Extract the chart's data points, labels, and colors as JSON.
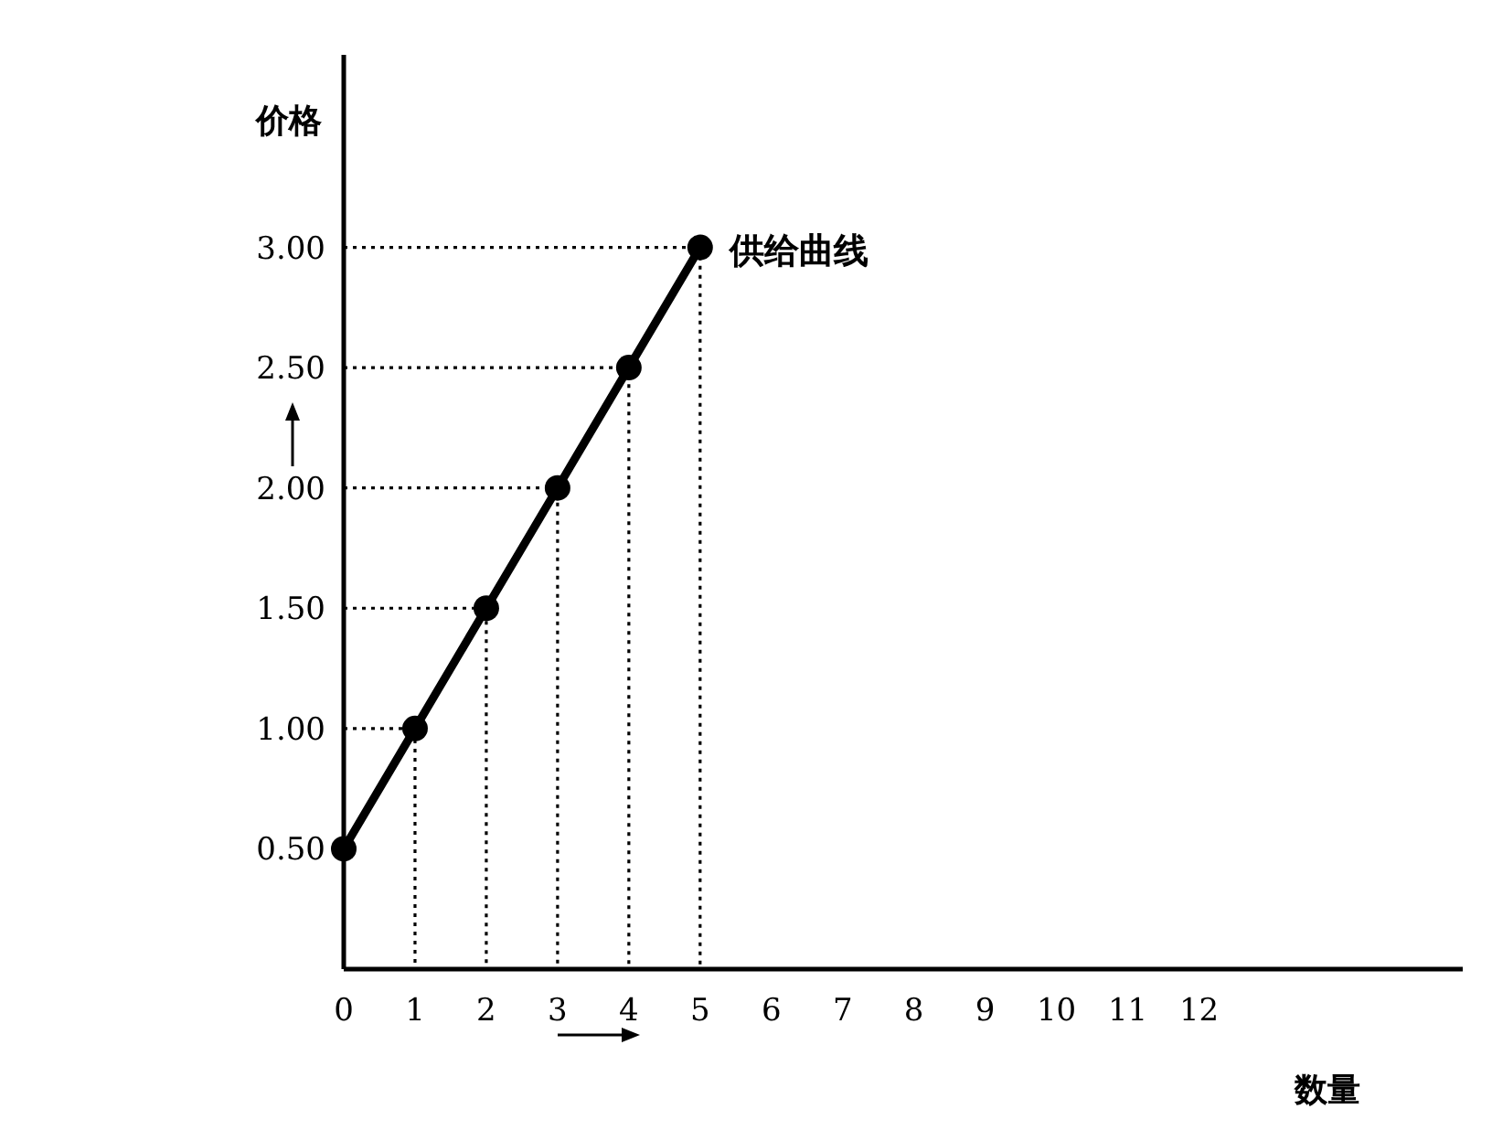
{
  "chart_data": {
    "type": "line",
    "xlabel": "数量",
    "ylabel": "价格",
    "xlim": [
      0,
      15.7
    ],
    "ylim": [
      0,
      3.8
    ],
    "xticks": [
      0,
      1,
      2,
      3,
      4,
      5,
      6,
      7,
      8,
      9,
      10,
      11,
      12
    ],
    "yticks": [
      {
        "value": 0.5,
        "label": "0.50"
      },
      {
        "value": 1,
        "label": "1.00"
      },
      {
        "value": 1.5,
        "label": "1.50"
      },
      {
        "value": 2,
        "label": "2.00"
      },
      {
        "value": 2.5,
        "label": "2.50"
      },
      {
        "value": 3,
        "label": "3.00"
      }
    ],
    "grid": false,
    "series": [
      {
        "color": "#000000",
        "x": [
          0,
          1,
          2,
          3,
          4,
          5
        ],
        "values": [
          0.5,
          1,
          1.5,
          2,
          2.5,
          3
        ],
        "marker": "circle",
        "line_style": "solid"
      },
      {
        "color": "#000000",
        "x": [
          0,
          1,
          1
        ],
        "values": [
          1,
          1,
          0
        ],
        "marker": "none",
        "line_style": "dotted"
      },
      {
        "color": "#000000",
        "x": [
          0,
          2,
          2
        ],
        "values": [
          1.5,
          1.5,
          0
        ],
        "marker": "none",
        "line_style": "dotted"
      },
      {
        "color": "#000000",
        "x": [
          0,
          3,
          3
        ],
        "values": [
          2,
          2,
          0
        ],
        "marker": "none",
        "line_style": "dotted"
      },
      {
        "color": "#000000",
        "x": [
          0,
          4,
          4
        ],
        "values": [
          2.5,
          2.5,
          0
        ],
        "marker": "none",
        "line_style": "dotted"
      },
      {
        "color": "#000000",
        "x": [
          0,
          5,
          5
        ],
        "values": [
          3,
          3,
          0
        ],
        "marker": "none",
        "line_style": "dotted"
      }
    ],
    "annotations": [
      {
        "text": "供给曲线",
        "x": 5,
        "y": 3
      }
    ]
  }
}
